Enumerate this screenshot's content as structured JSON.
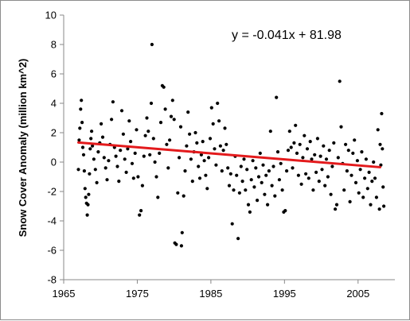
{
  "chart_data": {
    "type": "scatter",
    "title": "",
    "xlabel": "",
    "ylabel": "Snow Cover Anomaly (million km^2)",
    "xlim": [
      1965,
      2010
    ],
    "ylim": [
      -8,
      10
    ],
    "xticks": [
      1965,
      1975,
      1985,
      1995,
      2005
    ],
    "yticks": [
      -8,
      -6,
      -4,
      -2,
      0,
      2,
      4,
      6,
      8,
      10
    ],
    "grid": false,
    "point_color": "#000000",
    "trend_color": "#e31a1c",
    "annotation": "y = -0.041x + 81.98",
    "trendline": {
      "slope": -0.041,
      "intercept": 81.98,
      "x_range": [
        1967.0,
        2008.0
      ]
    },
    "series": [
      {
        "values": [
          [
            1967.0,
            -0.5
          ],
          [
            1967.1,
            1.5
          ],
          [
            1967.2,
            2.3
          ],
          [
            1967.3,
            3.6
          ],
          [
            1967.4,
            4.2
          ],
          [
            1967.5,
            2.7
          ],
          [
            1967.6,
            1.0
          ],
          [
            1967.7,
            0.5
          ],
          [
            1967.8,
            -0.6
          ],
          [
            1967.9,
            -1.8
          ],
          [
            1968.0,
            -2.4
          ],
          [
            1968.1,
            -2.8
          ],
          [
            1968.2,
            -3.6
          ],
          [
            1968.3,
            -2.9
          ],
          [
            1968.4,
            -2.2
          ],
          [
            1968.5,
            -0.8
          ],
          [
            1968.6,
            0.9
          ],
          [
            1968.7,
            1.6
          ],
          [
            1968.8,
            2.1
          ],
          [
            1968.9,
            1.1
          ],
          [
            1969.1,
            0.2
          ],
          [
            1969.3,
            -0.5
          ],
          [
            1969.5,
            -1.4
          ],
          [
            1969.7,
            0.7
          ],
          [
            1969.9,
            1.3
          ],
          [
            1970.1,
            2.6
          ],
          [
            1970.3,
            1.7
          ],
          [
            1970.5,
            0.3
          ],
          [
            1970.7,
            -0.4
          ],
          [
            1970.9,
            -1.2
          ],
          [
            1971.1,
            0.1
          ],
          [
            1971.3,
            1.2
          ],
          [
            1971.5,
            2.9
          ],
          [
            1971.7,
            4.1
          ],
          [
            1971.9,
            1.0
          ],
          [
            1972.1,
            0.4
          ],
          [
            1972.3,
            -0.3
          ],
          [
            1972.5,
            -1.3
          ],
          [
            1972.7,
            0.8
          ],
          [
            1972.9,
            3.5
          ],
          [
            1973.1,
            1.9
          ],
          [
            1973.3,
            0.2
          ],
          [
            1973.5,
            -0.7
          ],
          [
            1973.7,
            0.9
          ],
          [
            1973.9,
            2.8
          ],
          [
            1974.1,
            1.4
          ],
          [
            1974.3,
            -0.1
          ],
          [
            1974.5,
            -1.1
          ],
          [
            1974.7,
            0.6
          ],
          [
            1974.9,
            2.2
          ],
          [
            1975.1,
            -1.0
          ],
          [
            1975.3,
            -3.6
          ],
          [
            1975.5,
            -3.3
          ],
          [
            1975.7,
            -1.6
          ],
          [
            1975.9,
            0.4
          ],
          [
            1976.1,
            1.8
          ],
          [
            1976.3,
            3.0
          ],
          [
            1976.5,
            2.1
          ],
          [
            1976.7,
            0.5
          ],
          [
            1976.9,
            4.0
          ],
          [
            1977.0,
            8.0
          ],
          [
            1977.2,
            1.6
          ],
          [
            1977.4,
            0.0
          ],
          [
            1977.6,
            -1.0
          ],
          [
            1977.8,
            -2.4
          ],
          [
            1978.0,
            0.6
          ],
          [
            1978.2,
            2.7
          ],
          [
            1978.4,
            5.2
          ],
          [
            1978.6,
            5.1
          ],
          [
            1978.8,
            3.6
          ],
          [
            1979.0,
            1.2
          ],
          [
            1979.2,
            -0.4
          ],
          [
            1979.4,
            1.5
          ],
          [
            1979.6,
            3.1
          ],
          [
            1979.8,
            4.2
          ],
          [
            1980.0,
            2.9
          ],
          [
            1980.1,
            -5.5
          ],
          [
            1980.3,
            -5.6
          ],
          [
            1980.5,
            -2.1
          ],
          [
            1980.7,
            0.3
          ],
          [
            1980.9,
            2.4
          ],
          [
            1981.0,
            -5.7
          ],
          [
            1981.1,
            -4.8
          ],
          [
            1981.3,
            -2.3
          ],
          [
            1981.5,
            -0.6
          ],
          [
            1981.7,
            1.1
          ],
          [
            1981.9,
            3.4
          ],
          [
            1982.1,
            1.9
          ],
          [
            1982.3,
            0.2
          ],
          [
            1982.5,
            -1.3
          ],
          [
            1982.7,
            0.7
          ],
          [
            1982.9,
            2.0
          ],
          [
            1983.1,
            1.3
          ],
          [
            1983.3,
            -0.3
          ],
          [
            1983.5,
            -1.1
          ],
          [
            1983.7,
            0.5
          ],
          [
            1983.9,
            1.4
          ],
          [
            1984.1,
            0.1
          ],
          [
            1984.3,
            -0.9
          ],
          [
            1984.5,
            -1.8
          ],
          [
            1984.7,
            0.3
          ],
          [
            1984.9,
            1.6
          ],
          [
            1985.1,
            3.7
          ],
          [
            1985.3,
            2.6
          ],
          [
            1985.5,
            0.9
          ],
          [
            1985.7,
            -0.2
          ],
          [
            1985.9,
            4.0
          ],
          [
            1986.1,
            2.8
          ],
          [
            1986.3,
            1.1
          ],
          [
            1986.5,
            -0.6
          ],
          [
            1986.7,
            0.8
          ],
          [
            1986.9,
            2.3
          ],
          [
            1987.1,
            1.2
          ],
          [
            1987.3,
            -0.4
          ],
          [
            1987.5,
            -1.6
          ],
          [
            1987.7,
            -0.8
          ],
          [
            1987.9,
            -4.2
          ],
          [
            1988.1,
            -1.9
          ],
          [
            1988.3,
            0.4
          ],
          [
            1988.5,
            -0.9
          ],
          [
            1988.7,
            -5.2
          ],
          [
            1988.9,
            -2.1
          ],
          [
            1989.1,
            -0.3
          ],
          [
            1989.3,
            -1.3
          ],
          [
            1989.5,
            0.2
          ],
          [
            1989.7,
            -1.9
          ],
          [
            1989.9,
            -0.5
          ],
          [
            1990.1,
            -2.9
          ],
          [
            1990.3,
            -3.4
          ],
          [
            1990.5,
            -1.2
          ],
          [
            1990.7,
            0.1
          ],
          [
            1990.9,
            -1.7
          ],
          [
            1991.1,
            -0.4
          ],
          [
            1991.3,
            -2.6
          ],
          [
            1991.5,
            -1.0
          ],
          [
            1991.7,
            0.6
          ],
          [
            1991.9,
            -1.4
          ],
          [
            1992.1,
            -0.2
          ],
          [
            1992.3,
            -2.2
          ],
          [
            1992.5,
            -0.9
          ],
          [
            1992.7,
            -2.9
          ],
          [
            1992.9,
            -0.6
          ],
          [
            1993.1,
            2.1
          ],
          [
            1993.3,
            -1.6
          ],
          [
            1993.5,
            -0.3
          ],
          [
            1993.7,
            -2.3
          ],
          [
            1993.9,
            4.4
          ],
          [
            1994.1,
            0.7
          ],
          [
            1994.3,
            -1.2
          ],
          [
            1994.5,
            -0.1
          ],
          [
            1994.7,
            -1.9
          ],
          [
            1994.9,
            -3.4
          ],
          [
            1995.1,
            -3.3
          ],
          [
            1995.3,
            -0.6
          ],
          [
            1995.5,
            0.8
          ],
          [
            1995.7,
            2.1
          ],
          [
            1995.9,
            1.0
          ],
          [
            1996.1,
            -0.4
          ],
          [
            1996.3,
            1.3
          ],
          [
            1996.5,
            2.5
          ],
          [
            1996.7,
            0.6
          ],
          [
            1996.9,
            -0.9
          ],
          [
            1997.1,
            1.2
          ],
          [
            1997.3,
            -1.5
          ],
          [
            1997.5,
            0.3
          ],
          [
            1997.7,
            1.8
          ],
          [
            1997.9,
            -0.8
          ],
          [
            1998.1,
            0.9
          ],
          [
            1998.3,
            -1.1
          ],
          [
            1998.5,
            1.4
          ],
          [
            1998.7,
            0.2
          ],
          [
            1998.9,
            -1.9
          ],
          [
            1999.1,
            0.5
          ],
          [
            1999.3,
            -0.7
          ],
          [
            1999.5,
            1.6
          ],
          [
            1999.7,
            -1.3
          ],
          [
            1999.9,
            0.4
          ],
          [
            2000.1,
            -0.5
          ],
          [
            2000.3,
            1.1
          ],
          [
            2000.5,
            -1.6
          ],
          [
            2000.7,
            0.2
          ],
          [
            2000.9,
            -1.0
          ],
          [
            2001.1,
            0.8
          ],
          [
            2001.3,
            -2.2
          ],
          [
            2001.5,
            -0.3
          ],
          [
            2001.7,
            1.3
          ],
          [
            2001.9,
            -3.2
          ],
          [
            2002.1,
            -2.9
          ],
          [
            2002.3,
            0.3
          ],
          [
            2002.5,
            5.5
          ],
          [
            2002.7,
            2.4
          ],
          [
            2002.9,
            -0.1
          ],
          [
            2003.1,
            -1.9
          ],
          [
            2003.3,
            1.2
          ],
          [
            2003.5,
            -0.6
          ],
          [
            2003.7,
            0.8
          ],
          [
            2003.9,
            -2.7
          ],
          [
            2004.1,
            -0.9
          ],
          [
            2004.3,
            0.6
          ],
          [
            2004.5,
            1.5
          ],
          [
            2004.7,
            -1.4
          ],
          [
            2004.9,
            0.1
          ],
          [
            2005.1,
            -2.1
          ],
          [
            2005.3,
            -0.5
          ],
          [
            2005.5,
            0.7
          ],
          [
            2005.7,
            -2.4
          ],
          [
            2005.9,
            -1.1
          ],
          [
            2006.1,
            0.2
          ],
          [
            2006.3,
            -1.8
          ],
          [
            2006.5,
            -0.7
          ],
          [
            2006.7,
            -2.9
          ],
          [
            2006.9,
            -1.3
          ],
          [
            2007.1,
            0.0
          ],
          [
            2007.3,
            -1.1
          ],
          [
            2007.5,
            -2.4
          ],
          [
            2007.7,
            2.2
          ],
          [
            2007.9,
            -3.2
          ],
          [
            2008.0,
            1.2
          ],
          [
            2008.1,
            -0.2
          ],
          [
            2008.2,
            3.3
          ],
          [
            2008.3,
            0.9
          ],
          [
            2008.4,
            -1.7
          ],
          [
            2008.5,
            -3.0
          ]
        ]
      }
    ]
  }
}
